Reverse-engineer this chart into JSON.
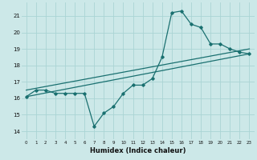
{
  "xlabel": "Humidex (Indice chaleur)",
  "bg_color": "#cce8e8",
  "grid_color": "#aad4d4",
  "line_color": "#1a7070",
  "xlim": [
    -0.5,
    23.5
  ],
  "ylim": [
    13.5,
    21.8
  ],
  "yticks": [
    14,
    15,
    16,
    17,
    18,
    19,
    20,
    21
  ],
  "xticks": [
    0,
    1,
    2,
    3,
    4,
    5,
    6,
    7,
    8,
    9,
    10,
    11,
    12,
    13,
    14,
    15,
    16,
    17,
    18,
    19,
    20,
    21,
    22,
    23
  ],
  "series_x": [
    0,
    1,
    2,
    3,
    4,
    5,
    6,
    7,
    8,
    9,
    10,
    11,
    12,
    13,
    14,
    15,
    16,
    17,
    18,
    19,
    20,
    21,
    22,
    23
  ],
  "series_y": [
    16.1,
    16.5,
    16.5,
    16.3,
    16.3,
    16.3,
    16.3,
    14.3,
    15.1,
    15.5,
    16.3,
    16.8,
    16.8,
    17.2,
    18.5,
    21.2,
    21.3,
    20.5,
    20.3,
    19.3,
    19.3,
    19.0,
    18.8,
    18.7
  ],
  "trend1_x": [
    0,
    23
  ],
  "trend1_y": [
    16.1,
    18.7
  ],
  "trend2_x": [
    0,
    14,
    23
  ],
  "trend2_y": [
    16.1,
    18.5,
    19.2
  ],
  "trend3_x": [
    0,
    23
  ],
  "trend3_y": [
    16.5,
    19.0
  ]
}
